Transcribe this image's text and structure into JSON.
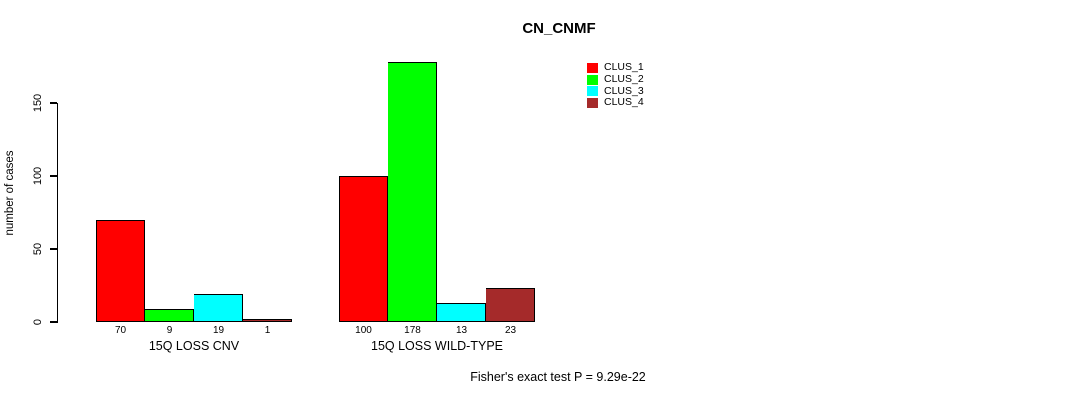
{
  "title": "CN_CNMF",
  "annotation": "Fisher's exact test P = 9.29e-22",
  "chart_data": {
    "type": "bar",
    "title": "CN_CNMF",
    "xlabel": "",
    "ylabel": "number of cases",
    "categories": [
      "15Q LOSS CNV",
      "15Q LOSS WILD-TYPE"
    ],
    "series": [
      {
        "name": "CLUS_1",
        "color": "#FF0000",
        "values": [
          70,
          100
        ]
      },
      {
        "name": "CLUS_2",
        "color": "#00FF00",
        "values": [
          9,
          178
        ]
      },
      {
        "name": "CLUS_3",
        "color": "#00FFFF",
        "values": [
          19,
          13
        ]
      },
      {
        "name": "CLUS_4",
        "color": "#A52A2A",
        "values": [
          1,
          23
        ]
      }
    ],
    "yticks": [
      0,
      50,
      100,
      150
    ],
    "ylim": [
      0,
      180
    ],
    "grid": false,
    "legend_position": "top-right",
    "bar_borders": "black",
    "value_labels_under_bars": true
  }
}
